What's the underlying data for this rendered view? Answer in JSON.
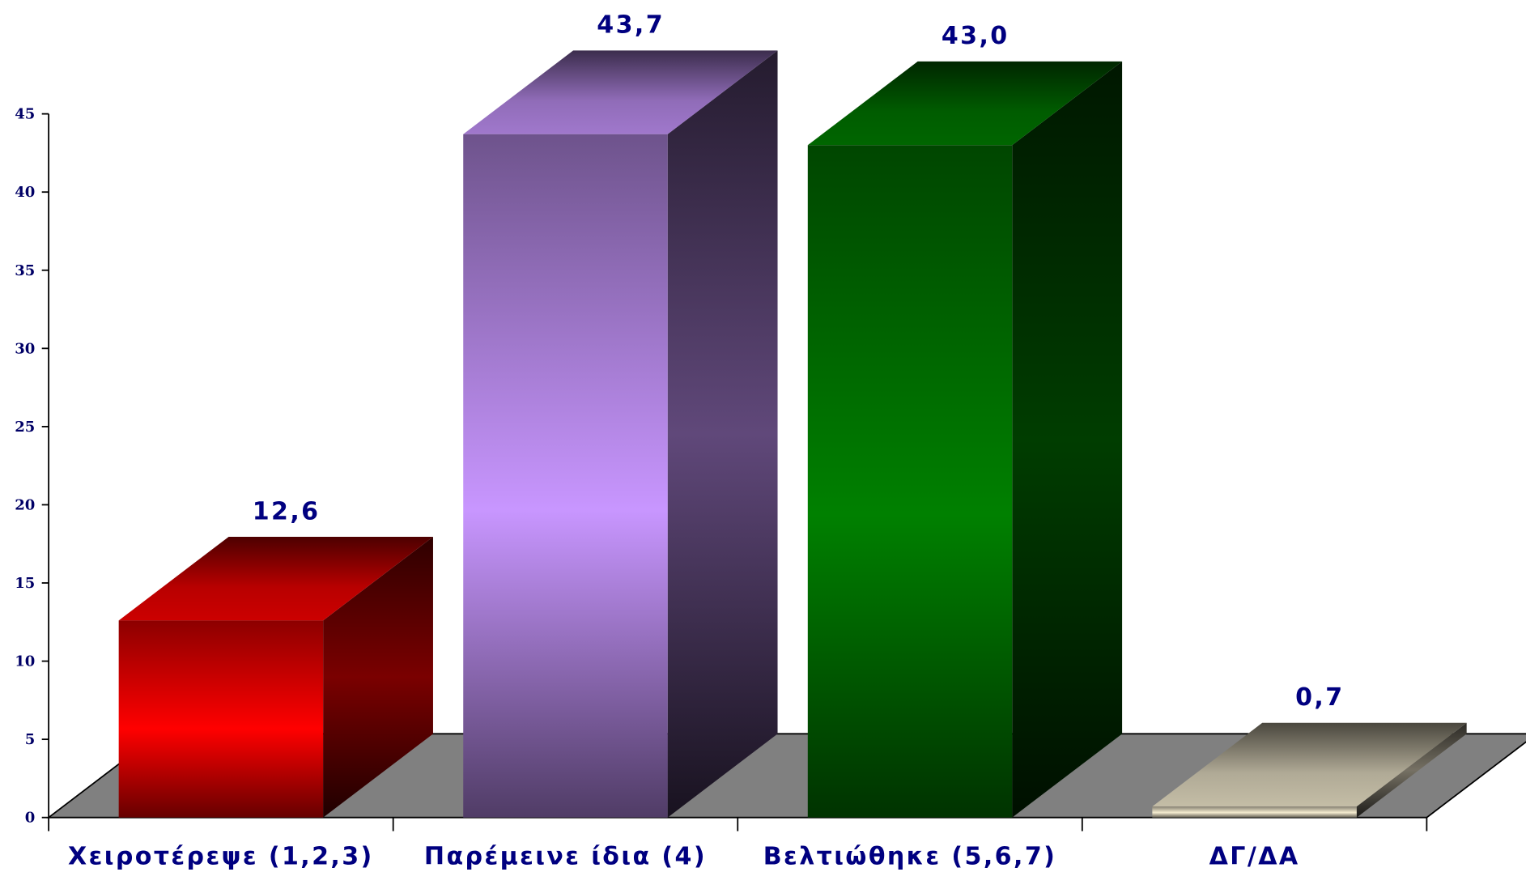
{
  "chart_data": {
    "type": "bar",
    "categories": [
      "Χειροτέρεψε (1,2,3)",
      "Παρέμεινε ίδια (4)",
      "Βελτιώθηκε (5,6,7)",
      "ΔΓ/ΔΑ"
    ],
    "values": [
      12.6,
      43.7,
      43.0,
      0.7
    ],
    "value_labels": [
      "12,6",
      "43,7",
      "43,0",
      "0,7"
    ],
    "yticks": [
      "0",
      "5",
      "10",
      "15",
      "20",
      "25",
      "30",
      "35",
      "40",
      "45"
    ],
    "ylim": [
      0,
      45
    ],
    "grid": false,
    "legend": "none",
    "style": "3d",
    "colors": [
      "#ff0000",
      "#c896ff",
      "#008000",
      "#f5ecd0"
    ],
    "floor_color": "#808080",
    "label_color": "#000080"
  }
}
